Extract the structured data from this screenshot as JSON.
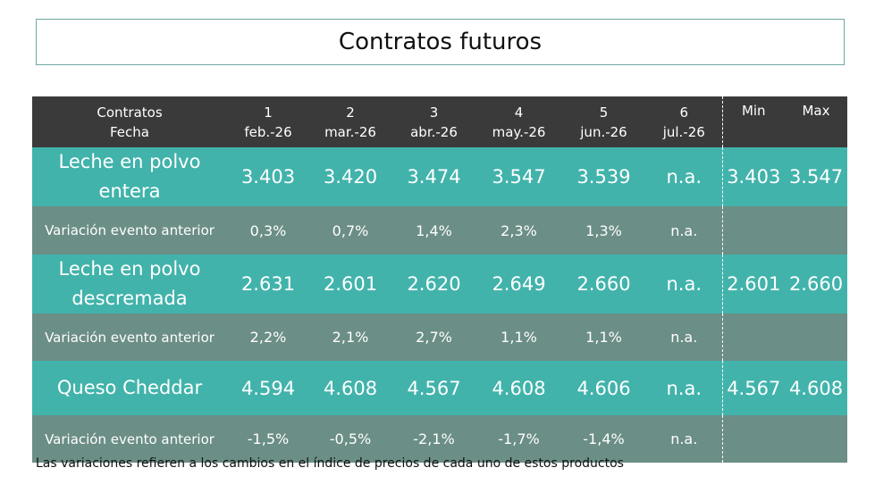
{
  "title": "Contratos futuros",
  "header": {
    "col0_top": "Contratos",
    "col0_bottom": "Fecha",
    "contracts": [
      {
        "num": "1",
        "date": "feb.-26"
      },
      {
        "num": "2",
        "date": "mar.-26"
      },
      {
        "num": "3",
        "date": "abr.-26"
      },
      {
        "num": "4",
        "date": "may.-26"
      },
      {
        "num": "5",
        "date": "jun.-26"
      },
      {
        "num": "6",
        "date": "jul.-26"
      }
    ],
    "min": "Min",
    "max": "Max"
  },
  "rows": [
    {
      "label": "Leche en polvo entera",
      "values": [
        "3.403",
        "3.420",
        "3.474",
        "3.547",
        "3.539",
        "n.a."
      ],
      "min": "3.403",
      "max": "3.547"
    },
    {
      "label": "Variación evento anterior",
      "values": [
        "0,3%",
        "0,7%",
        "1,4%",
        "2,3%",
        "1,3%",
        "n.a."
      ],
      "min": "",
      "max": ""
    },
    {
      "label": "Leche en polvo descremada",
      "values": [
        "2.631",
        "2.601",
        "2.620",
        "2.649",
        "2.660",
        "n.a."
      ],
      "min": "2.601",
      "max": "2.660"
    },
    {
      "label": "Variación evento anterior",
      "values": [
        "2,2%",
        "2,1%",
        "2,7%",
        "1,1%",
        "1,1%",
        "n.a."
      ],
      "min": "",
      "max": ""
    },
    {
      "label": "Queso Cheddar",
      "values": [
        "4.594",
        "4.608",
        "4.567",
        "4.608",
        "4.606",
        "n.a."
      ],
      "min": "4.567",
      "max": "4.608"
    },
    {
      "label": "Variación evento anterior",
      "values": [
        "-1,5%",
        "-0,5%",
        "-2,1%",
        "-1,7%",
        "-1,4%",
        "n.a."
      ],
      "min": "",
      "max": ""
    }
  ],
  "footnote": "Las variaciones refieren a los cambios en el índice de precios de cada uno de estos productos"
}
